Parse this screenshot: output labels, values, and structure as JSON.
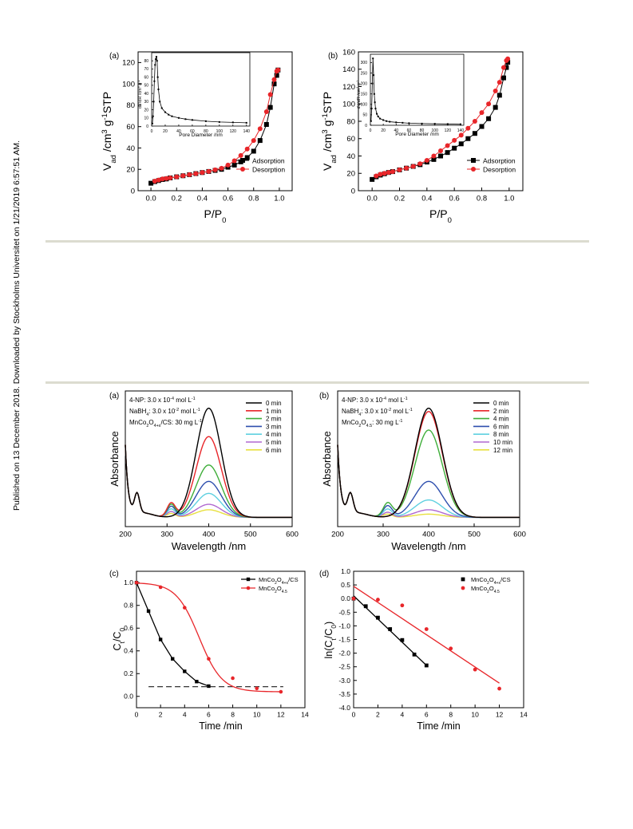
{
  "side_note": "Published on 13 December 2018. Downloaded by Stockholms Universitet on 1/21/2019 6:57:51 AM.",
  "colors": {
    "black": "#000000",
    "red": "#e8262a",
    "green": "#3fae3a",
    "blue": "#2e4fae",
    "cyan": "#5fd0e0",
    "purple": "#b068d0",
    "yellow": "#e8e040",
    "rule": "#dcdcd0"
  },
  "chart_data": [
    {
      "id": "fig1a",
      "type": "scatter",
      "panel_label": "(a)",
      "xlabel": "P/P0",
      "ylabel": "Vad /cm3 g-1 STP",
      "xlim": [
        -0.1,
        1.1
      ],
      "ylim": [
        0,
        130
      ],
      "xticks": [
        0.0,
        0.2,
        0.4,
        0.6,
        0.8,
        1.0
      ],
      "yticks": [
        0,
        20,
        40,
        60,
        80,
        100,
        120
      ],
      "legend": "bottom-right",
      "series": [
        {
          "name": "Adsorption",
          "color": "#000000",
          "marker": "square",
          "x": [
            0.0,
            0.03,
            0.06,
            0.09,
            0.12,
            0.15,
            0.2,
            0.25,
            0.3,
            0.35,
            0.4,
            0.45,
            0.5,
            0.55,
            0.6,
            0.65,
            0.7,
            0.75,
            0.8,
            0.85,
            0.9,
            0.93,
            0.96,
            0.98,
            0.99
          ],
          "y": [
            7,
            8.5,
            9.5,
            10.5,
            11,
            12,
            13,
            14,
            15,
            16,
            17,
            18,
            19,
            20,
            22,
            24,
            27,
            31,
            37,
            47,
            62,
            78,
            100,
            108,
            113
          ]
        },
        {
          "name": "Desorption",
          "color": "#e8262a",
          "marker": "circle",
          "x": [
            0.99,
            0.98,
            0.96,
            0.93,
            0.9,
            0.85,
            0.8,
            0.75,
            0.7,
            0.65,
            0.6,
            0.55,
            0.5,
            0.45,
            0.4,
            0.35,
            0.3,
            0.25,
            0.2,
            0.15,
            0.12,
            0.09,
            0.06,
            0.03
          ],
          "y": [
            113,
            112,
            104,
            90,
            74,
            58,
            47,
            39,
            33,
            28,
            24,
            21,
            19.5,
            18,
            17,
            16,
            15,
            14,
            13,
            12,
            11.5,
            11,
            10,
            9
          ]
        }
      ],
      "inset": {
        "type": "line",
        "xlabel": "Pore Diameter /nm",
        "ylabel": "dV/dR /cm3 g-1",
        "xlim": [
          0,
          145
        ],
        "ylim": [
          0,
          90
        ],
        "xticks": [
          0,
          20,
          40,
          60,
          80,
          100,
          120,
          140
        ],
        "yticks": [
          0,
          10,
          20,
          30,
          40,
          50,
          60,
          70,
          80
        ],
        "x": [
          1,
          2,
          3,
          4,
          5,
          6,
          7,
          8,
          9,
          10,
          12,
          15,
          20,
          25,
          30,
          40,
          50,
          60,
          80,
          100,
          120,
          140
        ],
        "y": [
          3,
          12,
          30,
          55,
          75,
          82,
          85,
          80,
          60,
          45,
          30,
          22,
          17,
          14,
          12,
          10,
          8.5,
          7.5,
          6,
          5,
          4.5,
          4
        ]
      }
    },
    {
      "id": "fig1b",
      "type": "scatter",
      "panel_label": "(b)",
      "xlabel": "P/P0",
      "ylabel": "Vad /cm3 g-1 STP",
      "xlim": [
        -0.1,
        1.1
      ],
      "ylim": [
        0,
        160
      ],
      "xticks": [
        0.0,
        0.2,
        0.4,
        0.6,
        0.8,
        1.0
      ],
      "yticks": [
        0,
        20,
        40,
        60,
        80,
        100,
        120,
        140,
        160
      ],
      "legend": "bottom-right",
      "series": [
        {
          "name": "Adsorption",
          "color": "#000000",
          "marker": "square",
          "x": [
            0.0,
            0.03,
            0.06,
            0.09,
            0.12,
            0.15,
            0.2,
            0.25,
            0.3,
            0.35,
            0.4,
            0.45,
            0.5,
            0.55,
            0.6,
            0.65,
            0.7,
            0.75,
            0.8,
            0.85,
            0.9,
            0.93,
            0.96,
            0.98,
            0.99
          ],
          "y": [
            13,
            16,
            18,
            19.5,
            21,
            22,
            24,
            26,
            28,
            30,
            33,
            36,
            40,
            44,
            49,
            54,
            60,
            66,
            74,
            83,
            96,
            110,
            130,
            142,
            148
          ]
        },
        {
          "name": "Desorption",
          "color": "#e8262a",
          "marker": "circle",
          "x": [
            0.99,
            0.98,
            0.96,
            0.93,
            0.9,
            0.85,
            0.8,
            0.75,
            0.7,
            0.65,
            0.6,
            0.55,
            0.5,
            0.45,
            0.4,
            0.35,
            0.3,
            0.25,
            0.2,
            0.15,
            0.12,
            0.09,
            0.06,
            0.03
          ],
          "y": [
            152,
            150,
            142,
            125,
            115,
            100,
            90,
            80,
            72,
            64,
            58,
            52,
            46,
            40,
            35,
            31,
            28,
            26,
            24,
            22,
            21,
            20,
            19,
            17
          ]
        }
      ],
      "inset": {
        "type": "line",
        "xlabel": "Pore Diameter /nm",
        "ylabel": "dV/dR /cm3 g-1",
        "xlim": [
          0,
          145
        ],
        "ylim": [
          0,
          340
        ],
        "xticks": [
          0,
          20,
          40,
          60,
          80,
          100,
          120,
          140
        ],
        "yticks": [
          0,
          50,
          100,
          150,
          200,
          250,
          300
        ],
        "x": [
          1,
          2,
          3,
          4,
          5,
          6,
          7,
          8,
          10,
          12,
          15,
          20,
          25,
          30,
          40,
          50,
          60,
          80,
          100,
          120,
          140
        ],
        "y": [
          20,
          80,
          200,
          320,
          240,
          150,
          110,
          80,
          55,
          42,
          32,
          25,
          20,
          17,
          14,
          12,
          10,
          8,
          7,
          6,
          5
        ]
      }
    },
    {
      "id": "fig2a",
      "type": "line",
      "panel_label": "(a)",
      "xlabel": "Wavelength /nm",
      "ylabel": "Absorbance",
      "xlim": [
        200,
        600
      ],
      "xticks": [
        200,
        300,
        400,
        500,
        600
      ],
      "annotations": [
        "4-NP: 3.0 x 10-4 mol L-1",
        "NaBH4: 3.0 x 10-2 mol L-1",
        "MnCo2O4+x/CS: 30 mg L-1"
      ],
      "legend": "top-right",
      "series": [
        {
          "name": "0 min",
          "color": "#000000",
          "peak400": 1.0,
          "peak310": 0.0
        },
        {
          "name": "1 min",
          "color": "#e8262a",
          "peak400": 0.74,
          "peak310": 0.22
        },
        {
          "name": "2 min",
          "color": "#3fae3a",
          "peak400": 0.48,
          "peak310": 0.2
        },
        {
          "name": "3 min",
          "color": "#2e4fae",
          "peak400": 0.33,
          "peak310": 0.17
        },
        {
          "name": "4 min",
          "color": "#5fd0e0",
          "peak400": 0.22,
          "peak310": 0.13
        },
        {
          "name": "5 min",
          "color": "#b068d0",
          "peak400": 0.12,
          "peak310": 0.09
        },
        {
          "name": "6 min",
          "color": "#e8e040",
          "peak400": 0.07,
          "peak310": 0.06
        }
      ]
    },
    {
      "id": "fig2b",
      "type": "line",
      "panel_label": "(b)",
      "xlabel": "Wavelength /nm",
      "ylabel": "Absorbance",
      "xlim": [
        200,
        600
      ],
      "xticks": [
        200,
        300,
        400,
        500,
        600
      ],
      "annotations": [
        "4-NP: 3.0 x 10-4 mol L-1",
        "NaBH4: 3.0 x 10-2 mol L-1",
        "MnCo2O4.5: 30 mg L-1"
      ],
      "legend": "top-right",
      "series": [
        {
          "name": "0 min",
          "color": "#000000",
          "peak400": 1.0,
          "peak310": 0.0
        },
        {
          "name": "2 min",
          "color": "#e8262a",
          "peak400": 0.97,
          "peak310": 0.0
        },
        {
          "name": "4 min",
          "color": "#3fae3a",
          "peak400": 0.8,
          "peak310": 0.22
        },
        {
          "name": "6 min",
          "color": "#2e4fae",
          "peak400": 0.33,
          "peak310": 0.18
        },
        {
          "name": "8 min",
          "color": "#5fd0e0",
          "peak400": 0.16,
          "peak310": 0.13
        },
        {
          "name": "10 min",
          "color": "#b068d0",
          "peak400": 0.07,
          "peak310": 0.08
        },
        {
          "name": "12 min",
          "color": "#e8e040",
          "peak400": 0.03,
          "peak310": 0.05
        }
      ]
    },
    {
      "id": "fig2c",
      "type": "line",
      "panel_label": "(c)",
      "xlabel": "Time /min",
      "ylabel": "Ct/C0",
      "xlim": [
        0,
        14
      ],
      "ylim": [
        -0.1,
        1.1
      ],
      "xticks": [
        0,
        2,
        4,
        6,
        8,
        10,
        12,
        14
      ],
      "yticks": [
        0.0,
        0.2,
        0.4,
        0.6,
        0.8,
        1.0
      ],
      "legend": "top-right",
      "reference_line_y": 0.085,
      "series": [
        {
          "name": "MnCo2O4+x/CS",
          "color": "#000000",
          "marker": "square",
          "x": [
            0,
            1,
            2,
            3,
            4,
            5,
            6
          ],
          "y": [
            1.0,
            0.75,
            0.5,
            0.33,
            0.22,
            0.13,
            0.09
          ]
        },
        {
          "name": "MnCo2O4.5",
          "color": "#e8262a",
          "marker": "circle",
          "x": [
            0,
            2,
            4,
            6,
            8,
            10,
            12
          ],
          "y": [
            1.0,
            0.96,
            0.78,
            0.33,
            0.16,
            0.07,
            0.04
          ]
        }
      ]
    },
    {
      "id": "fig2d",
      "type": "scatter",
      "panel_label": "(d)",
      "xlabel": "Time /min",
      "ylabel": "ln(Ct/C0)",
      "xlim": [
        0,
        14
      ],
      "ylim": [
        -4.0,
        1.0
      ],
      "xticks": [
        0,
        2,
        4,
        6,
        8,
        10,
        12,
        14
      ],
      "yticks": [
        1.0,
        0.5,
        0.0,
        -0.5,
        -1.0,
        -1.5,
        -2.0,
        -2.5,
        -3.0,
        -3.5,
        -4.0
      ],
      "legend": "top-right",
      "series": [
        {
          "name": "MnCo2O4+x/CS",
          "color": "#000000",
          "marker": "square",
          "x": [
            0,
            1,
            2,
            3,
            4,
            5,
            6
          ],
          "y": [
            0.0,
            -0.28,
            -0.7,
            -1.12,
            -1.52,
            -2.05,
            -2.45
          ],
          "fit": [
            [
              0,
              0.1
            ],
            [
              6,
              -2.45
            ]
          ]
        },
        {
          "name": "MnCo2O4.5",
          "color": "#e8262a",
          "marker": "circle",
          "x": [
            0,
            2,
            4,
            6,
            8,
            10,
            12
          ],
          "y": [
            0.0,
            -0.04,
            -0.25,
            -1.12,
            -1.83,
            -2.6,
            -3.3
          ],
          "fit": [
            [
              0,
              0.45
            ],
            [
              12,
              -3.1
            ]
          ]
        }
      ]
    }
  ]
}
